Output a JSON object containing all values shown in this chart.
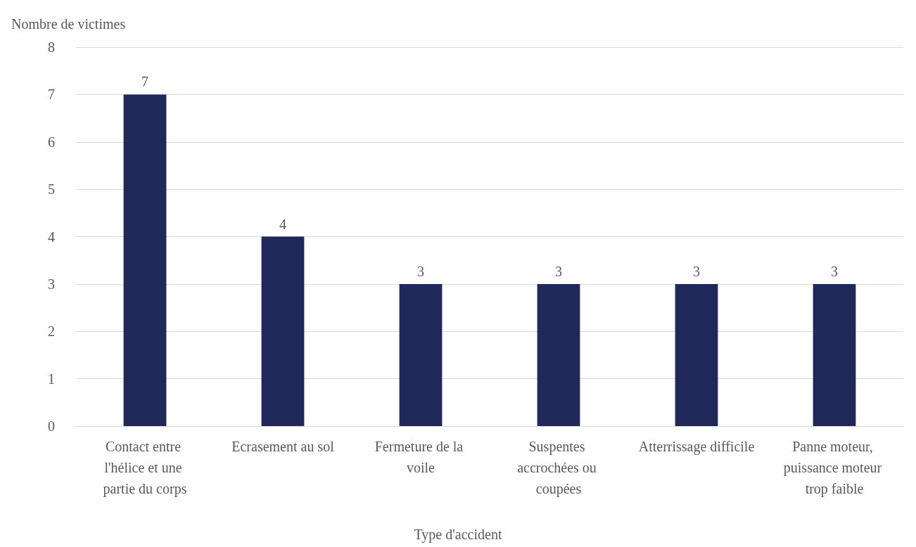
{
  "chart_data": {
    "type": "bar",
    "ylabel": "Nombre de victimes",
    "xlabel": "Type d'accident",
    "categories": [
      "Contact entre l'hélice et une partie du corps",
      "Ecrasement au sol",
      "Fermeture de la voile",
      "Suspentes accrochées ou coupées",
      "Atterrissage difficile",
      "Panne moteur, puissance moteur trop faible"
    ],
    "values": [
      7,
      4,
      3,
      3,
      3,
      3
    ],
    "color": "#1f2858",
    "ylim": [
      0,
      8
    ],
    "yticks": [
      0,
      1,
      2,
      3,
      4,
      5,
      6,
      7,
      8
    ],
    "grid": "y",
    "data_labels": true
  }
}
